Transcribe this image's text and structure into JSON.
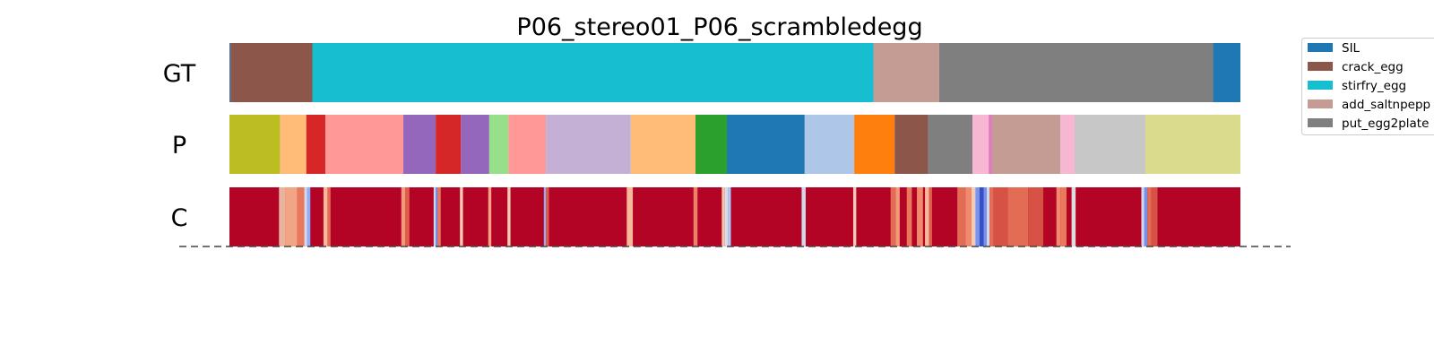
{
  "chart_data": {
    "type": "segmentation_timeline",
    "title": "P06_stereo01_P06_scrambledegg",
    "timeline_length": 1000,
    "rows": [
      {
        "label": "GT",
        "segments": [
          {
            "start": 0,
            "end": 1,
            "color": "#1f77b4"
          },
          {
            "start": 1,
            "end": 82,
            "color": "#8c564b"
          },
          {
            "start": 82,
            "end": 637,
            "color": "#17becf"
          },
          {
            "start": 637,
            "end": 702,
            "color": "#c49c94"
          },
          {
            "start": 702,
            "end": 973,
            "color": "#7f7f7f"
          },
          {
            "start": 973,
            "end": 1000,
            "color": "#1f77b4"
          }
        ]
      },
      {
        "label": "P",
        "segments": [
          {
            "start": 0,
            "end": 50,
            "color": "#bcbd22"
          },
          {
            "start": 50,
            "end": 76,
            "color": "#ffbb78"
          },
          {
            "start": 76,
            "end": 95,
            "color": "#d62728"
          },
          {
            "start": 95,
            "end": 172,
            "color": "#ff9896"
          },
          {
            "start": 172,
            "end": 204,
            "color": "#9467bd"
          },
          {
            "start": 204,
            "end": 229,
            "color": "#d62728"
          },
          {
            "start": 229,
            "end": 257,
            "color": "#9467bd"
          },
          {
            "start": 257,
            "end": 276,
            "color": "#98df8a"
          },
          {
            "start": 276,
            "end": 313,
            "color": "#ff9896"
          },
          {
            "start": 313,
            "end": 397,
            "color": "#c5b0d5"
          },
          {
            "start": 397,
            "end": 461,
            "color": "#ffbb78"
          },
          {
            "start": 461,
            "end": 492,
            "color": "#2ca02c"
          },
          {
            "start": 492,
            "end": 569,
            "color": "#1f77b4"
          },
          {
            "start": 569,
            "end": 618,
            "color": "#aec7e8"
          },
          {
            "start": 618,
            "end": 658,
            "color": "#ff7f0e"
          },
          {
            "start": 658,
            "end": 691,
            "color": "#8c564b"
          },
          {
            "start": 691,
            "end": 735,
            "color": "#7f7f7f"
          },
          {
            "start": 735,
            "end": 751,
            "color": "#f7b6d2"
          },
          {
            "start": 751,
            "end": 754,
            "color": "#e377c2"
          },
          {
            "start": 754,
            "end": 822,
            "color": "#c49c94"
          },
          {
            "start": 822,
            "end": 836,
            "color": "#f7b6d2"
          },
          {
            "start": 836,
            "end": 906,
            "color": "#c7c7c7"
          },
          {
            "start": 906,
            "end": 1000,
            "color": "#dbdb8d"
          }
        ]
      },
      {
        "label": "C",
        "base_color": "#b40426",
        "highlights": [
          {
            "start": 49,
            "end": 55,
            "color": "#e8b4a0"
          },
          {
            "start": 55,
            "end": 67,
            "color": "#f2a584"
          },
          {
            "start": 67,
            "end": 74,
            "color": "#e9785d"
          },
          {
            "start": 74,
            "end": 77,
            "color": "#cfd9ea"
          },
          {
            "start": 77,
            "end": 80,
            "color": "#8db0fe"
          },
          {
            "start": 93,
            "end": 97,
            "color": "#f7b89c"
          },
          {
            "start": 97,
            "end": 100,
            "color": "#e36c55"
          },
          {
            "start": 170,
            "end": 174,
            "color": "#f4987a"
          },
          {
            "start": 174,
            "end": 178,
            "color": "#dd5f4b"
          },
          {
            "start": 202,
            "end": 204,
            "color": "#cfd9ea"
          },
          {
            "start": 204,
            "end": 206,
            "color": "#6f92f3"
          },
          {
            "start": 206,
            "end": 209,
            "color": "#e9785d"
          },
          {
            "start": 228,
            "end": 231,
            "color": "#f2cbb7"
          },
          {
            "start": 256,
            "end": 259,
            "color": "#f6a385"
          },
          {
            "start": 275,
            "end": 278,
            "color": "#f2cbb7"
          },
          {
            "start": 311,
            "end": 313,
            "color": "#8db0fe"
          },
          {
            "start": 313,
            "end": 316,
            "color": "#dd5f4b"
          },
          {
            "start": 393,
            "end": 399,
            "color": "#f7b89c"
          },
          {
            "start": 459,
            "end": 463,
            "color": "#ec8165"
          },
          {
            "start": 487,
            "end": 490,
            "color": "#f4c5ad"
          },
          {
            "start": 490,
            "end": 493,
            "color": "#d8dce2"
          },
          {
            "start": 493,
            "end": 496,
            "color": "#aec9fc"
          },
          {
            "start": 566,
            "end": 570,
            "color": "#cfd9ea"
          },
          {
            "start": 617,
            "end": 620,
            "color": "#f2cbb7"
          },
          {
            "start": 654,
            "end": 659,
            "color": "#e36c55"
          },
          {
            "start": 659,
            "end": 663,
            "color": "#f4987a"
          },
          {
            "start": 670,
            "end": 675,
            "color": "#e9785d"
          },
          {
            "start": 680,
            "end": 686,
            "color": "#f08a6c"
          },
          {
            "start": 688,
            "end": 692,
            "color": "#f7b89c"
          },
          {
            "start": 692,
            "end": 695,
            "color": "#dd5f4b"
          },
          {
            "start": 720,
            "end": 728,
            "color": "#e36c55"
          },
          {
            "start": 728,
            "end": 734,
            "color": "#f08a6c"
          },
          {
            "start": 734,
            "end": 738,
            "color": "#f2cbb7"
          },
          {
            "start": 738,
            "end": 742,
            "color": "#7396f5"
          },
          {
            "start": 742,
            "end": 746,
            "color": "#3b4cc0"
          },
          {
            "start": 746,
            "end": 749,
            "color": "#6f92f3"
          },
          {
            "start": 749,
            "end": 752,
            "color": "#cfd9ea"
          },
          {
            "start": 752,
            "end": 756,
            "color": "#e36c55"
          },
          {
            "start": 756,
            "end": 770,
            "color": "#d65244"
          },
          {
            "start": 770,
            "end": 790,
            "color": "#e36c55"
          },
          {
            "start": 790,
            "end": 805,
            "color": "#d65244"
          },
          {
            "start": 818,
            "end": 822,
            "color": "#f08a6c"
          },
          {
            "start": 822,
            "end": 828,
            "color": "#e9785d"
          },
          {
            "start": 833,
            "end": 837,
            "color": "#dcdddd"
          },
          {
            "start": 902,
            "end": 905,
            "color": "#cfd9ea"
          },
          {
            "start": 905,
            "end": 908,
            "color": "#6f92f3"
          },
          {
            "start": 908,
            "end": 912,
            "color": "#e36c55"
          },
          {
            "start": 912,
            "end": 918,
            "color": "#d65244"
          }
        ]
      }
    ],
    "legend": {
      "placement": "top-right",
      "entries": [
        {
          "label": "SIL",
          "color": "#1f77b4"
        },
        {
          "label": "crack_egg",
          "color": "#8c564b"
        },
        {
          "label": "stirfry_egg",
          "color": "#17becf"
        },
        {
          "label": "add_saltnpepp",
          "color": "#c49c94"
        },
        {
          "label": "put_egg2plate",
          "color": "#7f7f7f"
        }
      ]
    }
  }
}
